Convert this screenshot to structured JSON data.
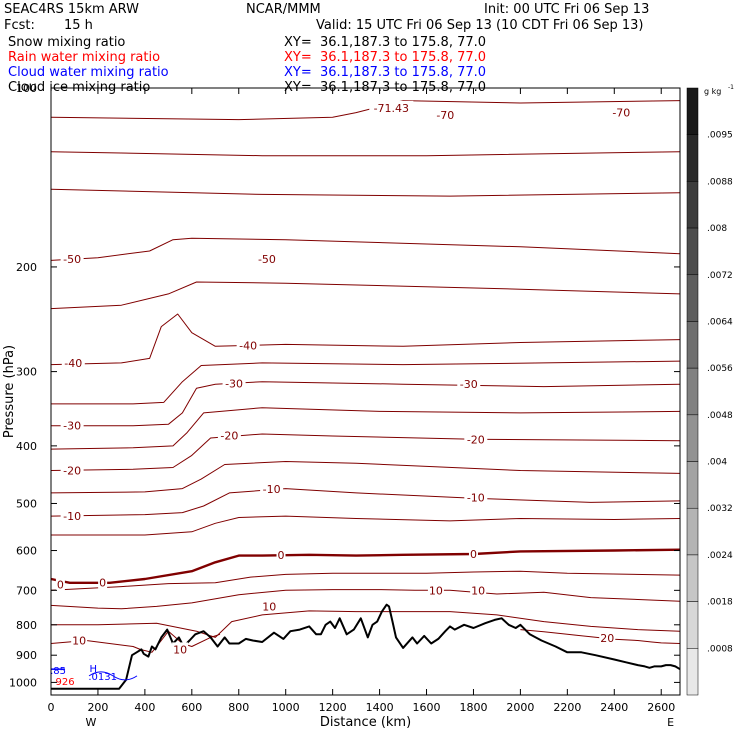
{
  "header": {
    "model": "SEAC4RS 15km ARW",
    "org": "NCAR/MMM",
    "init": "Init: 00 UTC Fri 06 Sep 13",
    "fcst_label": "Fcst:",
    "fcst_value": "15 h",
    "valid": "Valid: 15 UTC Fri 06 Sep 13 (10 CDT Fri 06 Sep 13)"
  },
  "fields": [
    {
      "name": "Snow mixing ratio",
      "xy": "XY=  36.1,187.3 to 175.8, 77.0",
      "color": "#000000"
    },
    {
      "name": "Rain water mixing ratio",
      "xy": "XY=  36.1,187.3 to 175.8, 77.0",
      "color": "#ff0000"
    },
    {
      "name": "Cloud water mixing ratio",
      "xy": "XY=  36.1,187.3 to 175.8, 77.0",
      "color": "#0000ff"
    },
    {
      "name": "Cloud ice mixing ratio",
      "xy": "XY=  36.1,187.3 to 175.8, 77.0",
      "color": "#000000"
    }
  ],
  "colors": {
    "isotherm": "#800000",
    "terrain": "#000000",
    "cloud": "#0000ff",
    "background": "#ffffff"
  },
  "chart_data": {
    "type": "line",
    "xlabel": "Distance (km)",
    "ylabel": "Pressure (hPa)",
    "xlim": [
      0,
      2680
    ],
    "ylim": [
      1050,
      100
    ],
    "y_scale": "log",
    "x_ticks": [
      0,
      200,
      400,
      600,
      800,
      1000,
      1200,
      1400,
      1600,
      1800,
      2000,
      2200,
      2400,
      2600
    ],
    "y_ticks": [
      200,
      300,
      400,
      500,
      600,
      700,
      800,
      900,
      1000
    ],
    "y_tick_top": "100",
    "x_end_labels": {
      "left": "W",
      "right": "E"
    },
    "terrain": {
      "x": [
        0,
        290,
        320,
        345,
        365,
        385,
        395,
        415,
        430,
        445,
        470,
        495,
        520,
        545,
        565,
        590,
        615,
        650,
        680,
        710,
        740,
        760,
        800,
        830,
        860,
        900,
        950,
        990,
        1020,
        1060,
        1100,
        1130,
        1150,
        1170,
        1190,
        1210,
        1230,
        1260,
        1290,
        1320,
        1350,
        1370,
        1390,
        1410,
        1430,
        1440,
        1455,
        1470,
        1500,
        1540,
        1560,
        1590,
        1620,
        1650,
        1680,
        1700,
        1720,
        1760,
        1800,
        1850,
        1890,
        1920,
        1950,
        1980,
        2000,
        2040,
        2090,
        2150,
        2200,
        2260,
        2320,
        2400,
        2450,
        2500,
        2530,
        2550,
        2570,
        2600,
        2620,
        2640,
        2660,
        2680
      ],
      "y": [
        1025,
        1025,
        990,
        900,
        890,
        880,
        895,
        905,
        870,
        880,
        840,
        815,
        860,
        840,
        870,
        850,
        830,
        820,
        840,
        870,
        840,
        860,
        860,
        845,
        850,
        855,
        825,
        845,
        820,
        815,
        805,
        830,
        830,
        800,
        790,
        810,
        780,
        830,
        815,
        780,
        840,
        800,
        790,
        760,
        740,
        745,
        790,
        840,
        875,
        840,
        860,
        835,
        860,
        845,
        820,
        805,
        815,
        800,
        810,
        795,
        785,
        780,
        800,
        810,
        800,
        830,
        850,
        870,
        890,
        890,
        900,
        915,
        925,
        935,
        940,
        945,
        940,
        940,
        935,
        935,
        940,
        950
      ]
    },
    "isotherms": [
      {
        "value": -70,
        "label": "-70",
        "x": [
          0,
          800,
          1200,
          1300,
          1500,
          2000,
          2680
        ],
        "y": [
          112,
          113,
          112,
          110,
          105,
          106,
          105
        ]
      },
      {
        "value": -60,
        "label": "",
        "x": [
          0,
          900,
          1600,
          2680
        ],
        "y": [
          128,
          130,
          130,
          128
        ]
      },
      {
        "value": -55,
        "label": "",
        "x": [
          0,
          900,
          1700,
          2680
        ],
        "y": [
          148,
          151,
          152,
          150
        ]
      },
      {
        "value": -50,
        "label": "-50",
        "x": [
          0,
          200,
          420,
          520,
          600,
          1000,
          2000,
          2680
        ],
        "y": [
          195,
          193,
          188,
          180,
          179,
          180,
          185,
          190
        ]
      },
      {
        "value": -45,
        "label": "",
        "x": [
          0,
          300,
          500,
          620,
          1000,
          2000,
          2680
        ],
        "y": [
          235,
          232,
          222,
          212,
          213,
          218,
          222
        ]
      },
      {
        "value": -40,
        "label": "-40",
        "x": [
          0,
          300,
          420,
          470,
          540,
          600,
          700,
          1000,
          1500,
          2000,
          2680
        ],
        "y": [
          292,
          290,
          285,
          252,
          240,
          258,
          272,
          270,
          272,
          268,
          265
        ]
      },
      {
        "value": -35,
        "label": "",
        "x": [
          0,
          350,
          480,
          560,
          640,
          900,
          1500,
          2100,
          2680
        ],
        "y": [
          340,
          340,
          338,
          312,
          293,
          290,
          292,
          290,
          288
        ]
      },
      {
        "value": -30,
        "label": "-30",
        "x": [
          0,
          350,
          500,
          560,
          620,
          700,
          900,
          1500,
          2100,
          2680
        ],
        "y": [
          370,
          370,
          368,
          352,
          320,
          315,
          312,
          315,
          318,
          315
        ]
      },
      {
        "value": -25,
        "label": "",
        "x": [
          0,
          350,
          520,
          580,
          650,
          900,
          1400,
          2000,
          2680
        ],
        "y": [
          405,
          403,
          400,
          380,
          352,
          345,
          350,
          352,
          350
        ]
      },
      {
        "value": -20,
        "label": "-20",
        "x": [
          0,
          350,
          520,
          600,
          680,
          900,
          1200,
          1800,
          2680
        ],
        "y": [
          440,
          438,
          435,
          415,
          388,
          382,
          385,
          390,
          392
        ]
      },
      {
        "value": -15,
        "label": "",
        "x": [
          0,
          400,
          560,
          640,
          740,
          1000,
          1300,
          2000,
          2680
        ],
        "y": [
          480,
          478,
          472,
          455,
          430,
          425,
          428,
          440,
          445
        ]
      },
      {
        "value": -10,
        "label": "-10",
        "x": [
          0,
          400,
          560,
          650,
          760,
          1000,
          1300,
          1800,
          2300,
          2680
        ],
        "y": [
          525,
          522,
          518,
          505,
          480,
          472,
          480,
          490,
          498,
          495
        ]
      },
      {
        "value": -5,
        "label": "",
        "x": [
          0,
          400,
          600,
          700,
          800,
          1000,
          1300,
          1700,
          2000,
          2400,
          2680
        ],
        "y": [
          565,
          565,
          558,
          540,
          528,
          525,
          530,
          535,
          530,
          532,
          530
        ]
      },
      {
        "value": 0,
        "label": "0",
        "bold": true,
        "x": [
          0,
          80,
          250,
          400,
          600,
          700,
          800,
          900,
          1100,
          1300,
          1500,
          1800,
          2000,
          2400,
          2680
        ],
        "y": [
          670,
          680,
          680,
          670,
          650,
          628,
          612,
          612,
          610,
          612,
          610,
          608,
          602,
          600,
          598
        ]
      },
      {
        "value": 5,
        "label": "",
        "x": [
          0,
          300,
          500,
          700,
          850,
          1000,
          1200,
          1400,
          1600,
          1800,
          2000,
          2200,
          2680
        ],
        "y": [
          700,
          690,
          682,
          680,
          665,
          658,
          655,
          655,
          655,
          652,
          650,
          655,
          660
        ]
      },
      {
        "value": 10,
        "label": "10",
        "x": [
          0,
          200,
          300,
          450,
          600,
          800,
          1000,
          1200,
          1400,
          1550,
          1700,
          1900,
          2100,
          2300,
          2680
        ],
        "y": [
          742,
          750,
          752,
          745,
          735,
          712,
          700,
          698,
          698,
          700,
          700,
          710,
          705,
          720,
          730
        ]
      },
      {
        "value": 15,
        "label": "",
        "x": [
          0,
          200,
          450,
          620,
          700,
          770,
          900,
          1100,
          1300,
          1500,
          1700,
          1900,
          2100,
          2300,
          2500,
          2680
        ],
        "y": [
          800,
          800,
          795,
          820,
          840,
          790,
          770,
          758,
          760,
          760,
          760,
          770,
          790,
          805,
          815,
          820
        ]
      },
      {
        "value": 20,
        "label": "20",
        "x": [
          0,
          150,
          350,
          380,
          430,
          470,
          500,
          560,
          600,
          680,
          720
        ],
        "y": [
          860,
          850,
          870,
          880,
          890,
          850,
          820,
          860,
          870,
          840,
          830
        ]
      },
      {
        "value": 20,
        "label": "20",
        "x": [
          2000,
          2100,
          2200,
          2300,
          2400,
          2500,
          2560,
          2600,
          2680
        ],
        "y": [
          815,
          822,
          830,
          838,
          846,
          850,
          855,
          858,
          860
        ]
      }
    ],
    "annotations": [
      {
        "text": "-71.43",
        "x": 1450,
        "y": 108
      },
      {
        "text": "-70",
        "x": 1680,
        "y": 111
      },
      {
        "text": "-70",
        "x": 2430,
        "y": 110
      },
      {
        "text": "-50",
        "x": 90,
        "y": 194
      },
      {
        "text": "-50",
        "x": 920,
        "y": 194
      },
      {
        "text": "-40",
        "x": 95,
        "y": 290
      },
      {
        "text": "-40",
        "x": 840,
        "y": 271
      },
      {
        "text": "-30",
        "x": 90,
        "y": 370
      },
      {
        "text": "-30",
        "x": 780,
        "y": 314
      },
      {
        "text": "-30",
        "x": 1780,
        "y": 315
      },
      {
        "text": "-20",
        "x": 90,
        "y": 440
      },
      {
        "text": "-20",
        "x": 760,
        "y": 384
      },
      {
        "text": "-20",
        "x": 1810,
        "y": 390
      },
      {
        "text": "-10",
        "x": 90,
        "y": 525
      },
      {
        "text": "-10",
        "x": 940,
        "y": 473
      },
      {
        "text": "-10",
        "x": 1810,
        "y": 489
      },
      {
        "text": "0",
        "x": 40,
        "y": 685
      },
      {
        "text": "0",
        "x": 220,
        "y": 679
      },
      {
        "text": "0",
        "x": 980,
        "y": 611
      },
      {
        "text": "0",
        "x": 1800,
        "y": 608
      },
      {
        "text": "10",
        "x": 1640,
        "y": 700
      },
      {
        "text": "10",
        "x": 1820,
        "y": 700
      },
      {
        "text": "10",
        "x": 930,
        "y": 745
      },
      {
        "text": "10",
        "x": 120,
        "y": 850
      },
      {
        "text": "10",
        "x": 550,
        "y": 880
      },
      {
        "text": "20",
        "x": 2370,
        "y": 842
      }
    ],
    "cloud_annotations": [
      {
        "text": "H",
        "x": 180,
        "y": 960
      },
      {
        "text": ".0131",
        "x": 220,
        "y": 990
      },
      {
        "text": ".85",
        "x": 30,
        "y": 968
      },
      {
        "text": "926",
        "x": 60,
        "y": 1010
      }
    ],
    "colorbar": {
      "unit": "g kg",
      "unit_exp": "-1",
      "labels": [
        ".0095",
        ".0088",
        ".008",
        ".0072",
        ".0064",
        ".0056",
        ".0048",
        ".004",
        ".0032",
        ".0024",
        ".0018",
        ".0008"
      ],
      "levels": [
        1.0,
        0.925,
        0.85,
        0.775,
        0.7,
        0.625,
        0.55,
        0.475,
        0.4,
        0.325,
        0.25,
        0.175,
        0.1
      ]
    }
  }
}
